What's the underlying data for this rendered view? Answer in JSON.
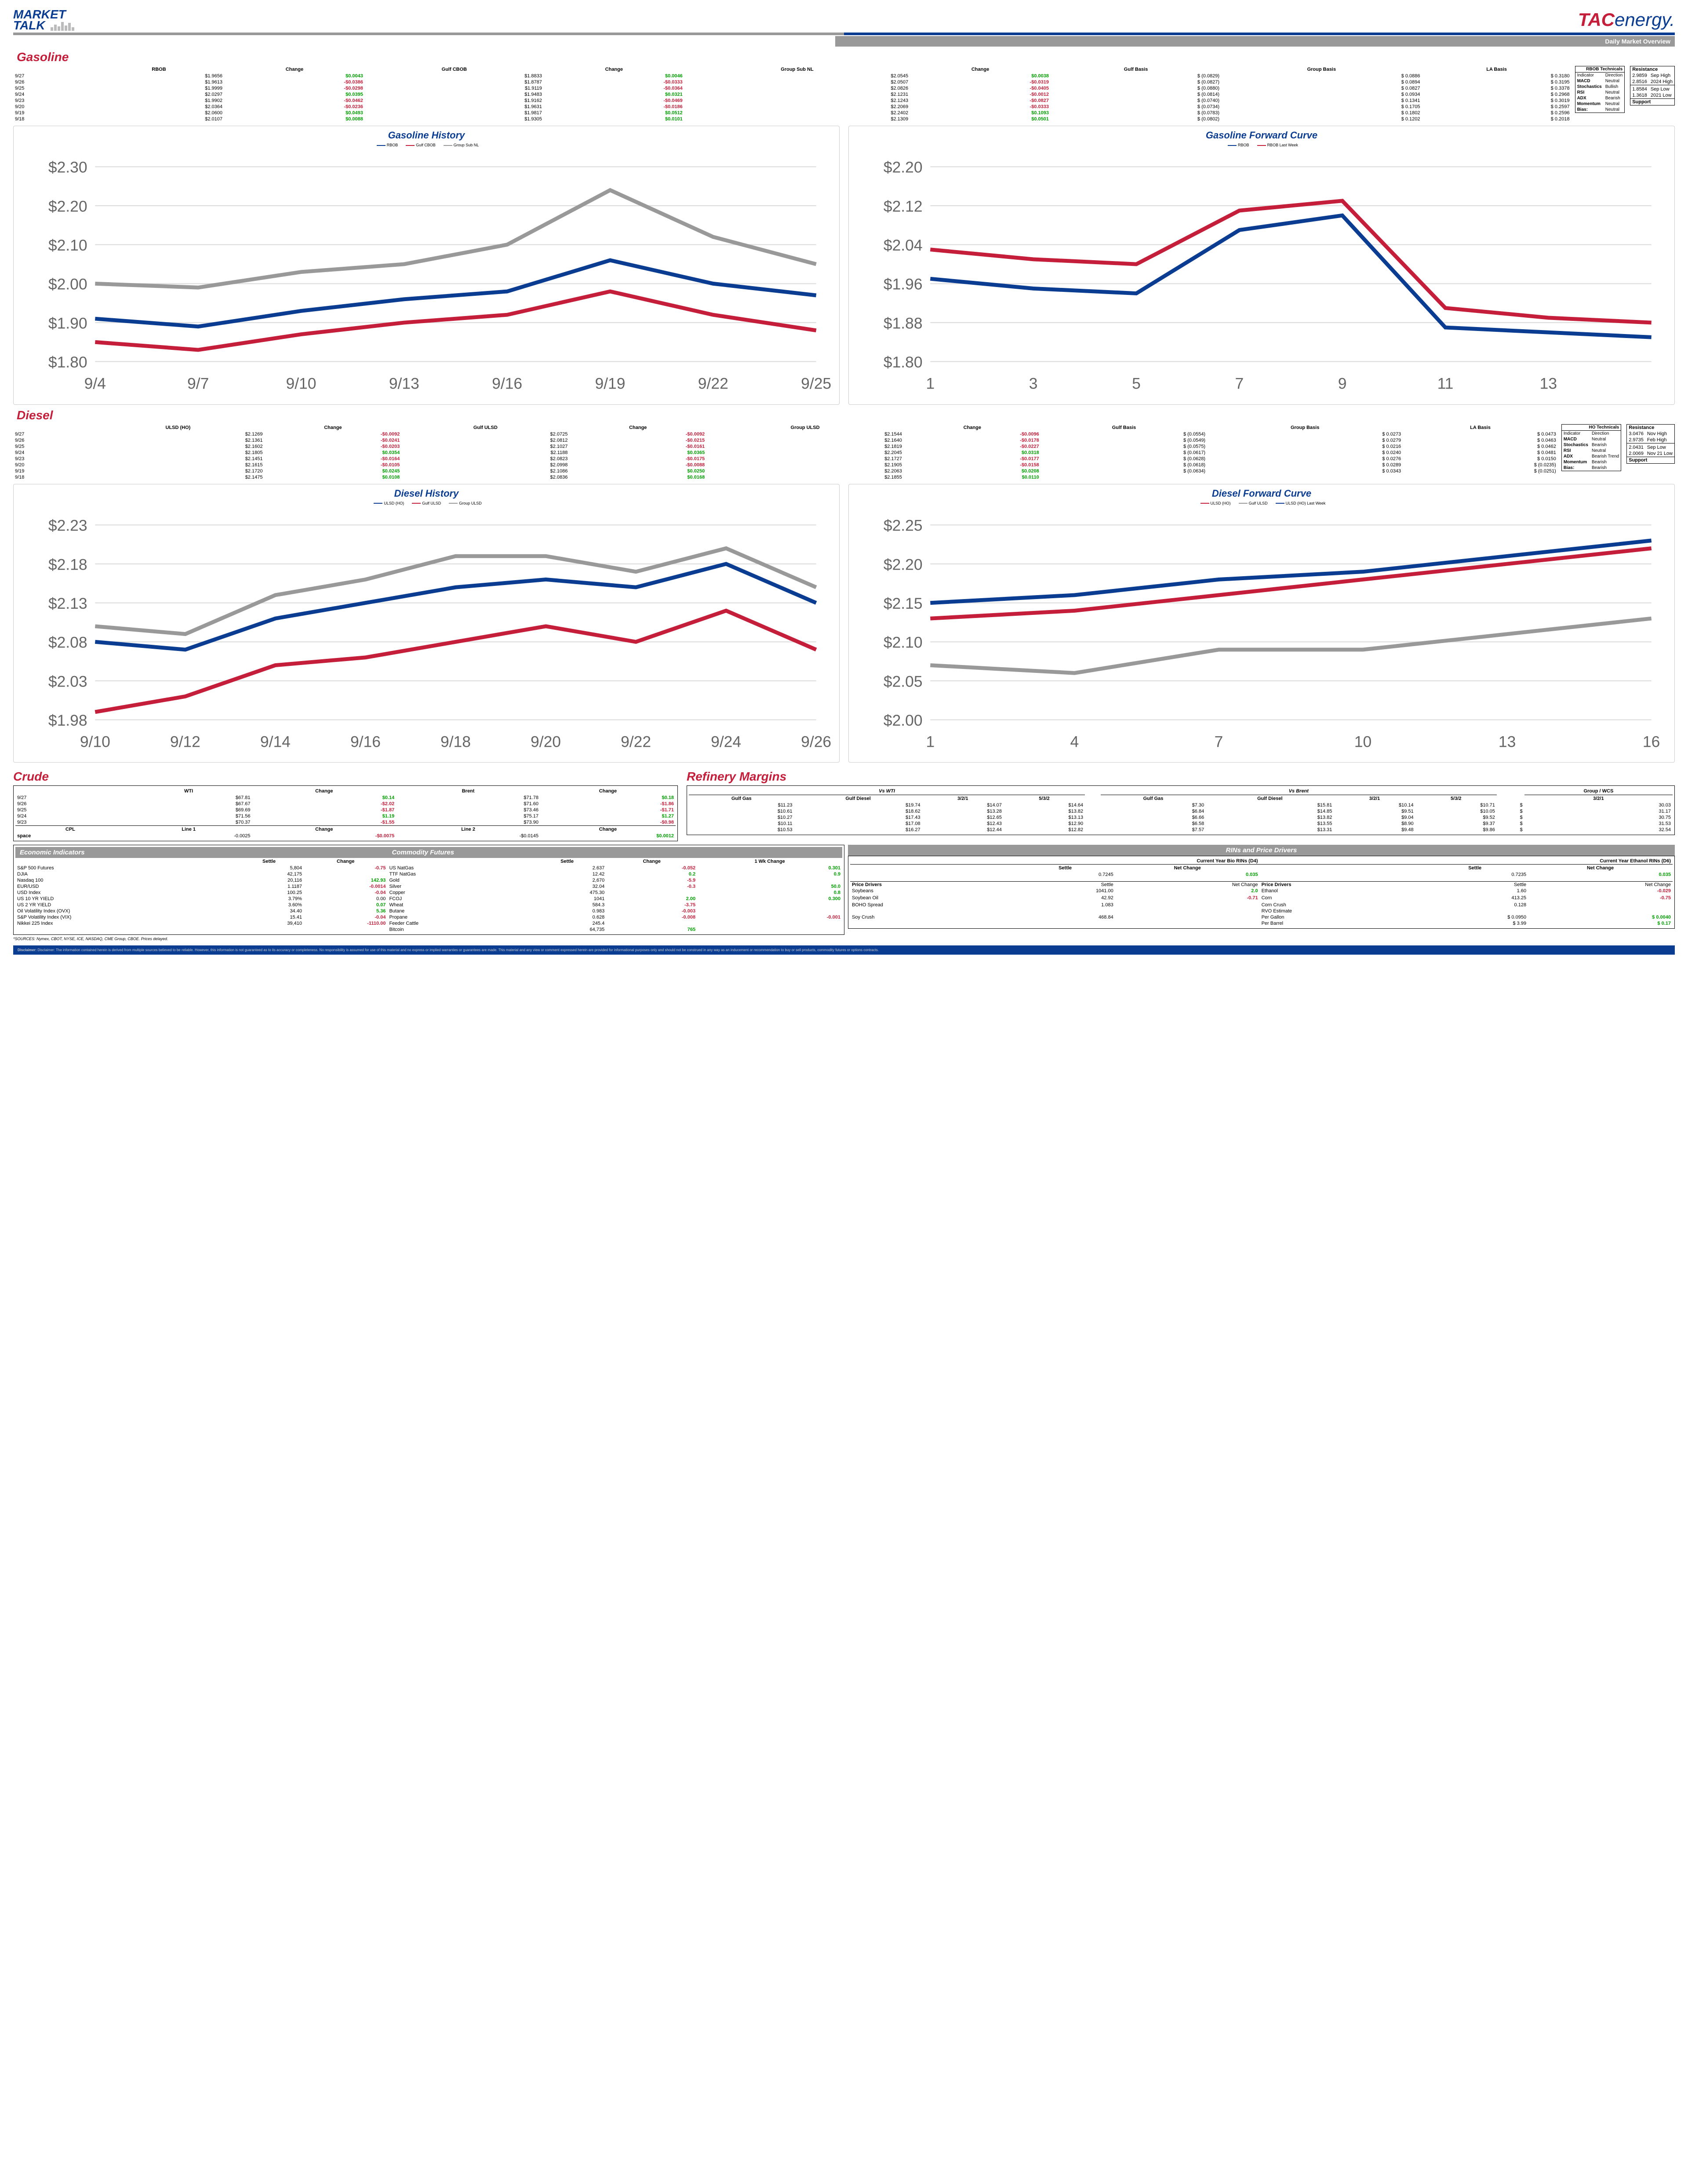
{
  "titles": {
    "market": "MARKET",
    "talk": "TALK",
    "dmo": "Daily Market Overview",
    "gasoline": "Gasoline",
    "diesel": "Diesel",
    "crude": "Crude",
    "refinery": "Refinery Margins",
    "gasHist": "Gasoline History",
    "gasFwd": "Gasoline Forward Curve",
    "dslHist": "Diesel History",
    "dslFwd": "Diesel Forward Curve",
    "econ": "Economic Indicators",
    "comm": "Commodity Futures",
    "rins": "RINs and Price Drivers",
    "src": "*SOURCES: Nymex, CBOT, NYSE, ICE, NASDAQ, CME Group, CBOE.   Prices delayed.",
    "disc": "Disclaimer: The information contained herein is derived from multiple sources believed to be reliable. However, this information is not guaranteed as to its accuracy or completeness. No responsibility is assumed for use of this material and no express or implied warranties or guarantees are made. This material and any view or comment expressed herein are provided for informational purposes only and should not be construed in any way as an inducement or recommendation to buy or sell products, commodity futures or options contracts."
  },
  "gasCols": [
    "",
    "RBOB",
    "Change",
    "Gulf CBOB",
    "Change",
    "Group Sub NL",
    "Change",
    "Gulf Basis",
    "Group Basis",
    "LA Basis"
  ],
  "gasRows": [
    [
      "9/27",
      "$1.9656",
      "$0.0043",
      "$1.8833",
      "$0.0046",
      "$2.0545",
      "$0.0038",
      "$  (0.0829)",
      "$      0.0886",
      "$   0.3180"
    ],
    [
      "9/26",
      "$1.9613",
      "-$0.0386",
      "$1.8787",
      "-$0.0333",
      "$2.0507",
      "-$0.0319",
      "$  (0.0827)",
      "$      0.0894",
      "$   0.3195"
    ],
    [
      "9/25",
      "$1.9999",
      "-$0.0298",
      "$1.9119",
      "-$0.0364",
      "$2.0826",
      "-$0.0405",
      "$  (0.0880)",
      "$      0.0827",
      "$   0.3378"
    ],
    [
      "9/24",
      "$2.0297",
      "$0.0395",
      "$1.9483",
      "$0.0321",
      "$2.1231",
      "-$0.0012",
      "$  (0.0814)",
      "$      0.0934",
      "$   0.2968"
    ],
    [
      "9/23",
      "$1.9902",
      "-$0.0462",
      "$1.9162",
      "-$0.0469",
      "$2.1243",
      "-$0.0827",
      "$  (0.0740)",
      "$      0.1341",
      "$   0.3019"
    ],
    [
      "9/20",
      "$2.0364",
      "-$0.0236",
      "$1.9631",
      "-$0.0186",
      "$2.2069",
      "-$0.0333",
      "$  (0.0734)",
      "$      0.1705",
      "$   0.2597"
    ],
    [
      "9/19",
      "$2.0600",
      "$0.0493",
      "$1.9817",
      "$0.0512",
      "$2.2402",
      "$0.1093",
      "$  (0.0783)",
      "$      0.1802",
      "$   0.2596"
    ],
    [
      "9/18",
      "$2.0107",
      "$0.0088",
      "$1.9305",
      "$0.0101",
      "$2.1309",
      "$0.0501",
      "$  (0.0802)",
      "$      0.1202",
      "$   0.2018"
    ]
  ],
  "gasTech": {
    "title": "RBOB Technicals",
    "cols": [
      "Indicator",
      "Direction"
    ],
    "rows": [
      [
        "MACD",
        "Neutral"
      ],
      [
        "Stochastics",
        "Bullish"
      ],
      [
        "RSI",
        "Neutral"
      ],
      [
        "ADX",
        "Bearish"
      ],
      [
        "Momentum",
        "Neutral"
      ],
      [
        "Bias:",
        "Neutral"
      ]
    ]
  },
  "gasRes": {
    "title": "Resistance",
    "rows": [
      [
        "2.9859",
        "Sep High"
      ],
      [
        "2.8516",
        "2024 High"
      ],
      [
        "1.8584",
        "Sep Low"
      ],
      [
        "1.3618",
        "2021 Low"
      ]
    ],
    "sup": "Support"
  },
  "dslCols": [
    "",
    "ULSD (HO)",
    "Change",
    "Gulf ULSD",
    "Change",
    "Group ULSD",
    "Change",
    "Gulf Basis",
    "Group Basis",
    "LA Basis"
  ],
  "dslRows": [
    [
      "9/27",
      "$2.1269",
      "-$0.0092",
      "$2.0725",
      "-$0.0092",
      "$2.1544",
      "-$0.0096",
      "$  (0.0554)",
      "$      0.0273",
      "$   0.0473"
    ],
    [
      "9/26",
      "$2.1361",
      "-$0.0241",
      "$2.0812",
      "-$0.0215",
      "$2.1640",
      "-$0.0178",
      "$  (0.0549)",
      "$      0.0279",
      "$   0.0463"
    ],
    [
      "9/25",
      "$2.1602",
      "-$0.0203",
      "$2.1027",
      "-$0.0161",
      "$2.1819",
      "-$0.0227",
      "$  (0.0575)",
      "$      0.0216",
      "$   0.0462"
    ],
    [
      "9/24",
      "$2.1805",
      "$0.0354",
      "$2.1188",
      "$0.0365",
      "$2.2045",
      "$0.0318",
      "$  (0.0617)",
      "$      0.0240",
      "$   0.0481"
    ],
    [
      "9/23",
      "$2.1451",
      "-$0.0164",
      "$2.0823",
      "-$0.0175",
      "$2.1727",
      "-$0.0177",
      "$  (0.0628)",
      "$      0.0276",
      "$   0.0150"
    ],
    [
      "9/20",
      "$2.1615",
      "-$0.0105",
      "$2.0998",
      "-$0.0088",
      "$2.1905",
      "-$0.0158",
      "$  (0.0618)",
      "$      0.0289",
      "$  (0.0235)"
    ],
    [
      "9/19",
      "$2.1720",
      "$0.0245",
      "$2.1086",
      "$0.0250",
      "$2.2063",
      "$0.0208",
      "$  (0.0634)",
      "$      0.0343",
      "$  (0.0251)"
    ],
    [
      "9/18",
      "$2.1475",
      "$0.0108",
      "$2.0836",
      "$0.0168",
      "$2.1855",
      "$0.0110",
      "",
      "",
      ""
    ]
  ],
  "dslTech": {
    "title": "HO Technicals",
    "cols": [
      "Indicator",
      "Direction"
    ],
    "rows": [
      [
        "MACD",
        "Neutral"
      ],
      [
        "Stochastics",
        "Bearish"
      ],
      [
        "RSI",
        "Neutral"
      ],
      [
        "ADX",
        "Bearish Trend"
      ],
      [
        "Momentum",
        "Bearish"
      ],
      [
        "Bias:",
        "Bearish"
      ]
    ]
  },
  "dslRes": {
    "title": "Resistance",
    "rows": [
      [
        "3.0476",
        "Nov High"
      ],
      [
        "2.9735",
        "Feb High"
      ],
      [
        "2.0431",
        "Sep Low"
      ],
      [
        "2.0069",
        "Nov 21 Low"
      ]
    ],
    "sup": "Support"
  },
  "crudeCols": [
    "",
    "WTI",
    "Change",
    "Brent",
    "Change"
  ],
  "crudeRows": [
    [
      "9/27",
      "$67.81",
      "$0.14",
      "$71.78",
      "$0.18"
    ],
    [
      "9/26",
      "$67.67",
      "-$2.02",
      "$71.60",
      "-$1.86"
    ],
    [
      "9/25",
      "$69.69",
      "-$1.87",
      "$73.46",
      "-$1.71"
    ],
    [
      "9/24",
      "$71.56",
      "$1.19",
      "$75.17",
      "$1.27"
    ],
    [
      "9/23",
      "$70.37",
      "-$1.55",
      "$73.90",
      "-$0.98"
    ]
  ],
  "cpl": {
    "label": "CPL",
    "sub": "space",
    "l1": "Line 1",
    "l1c": "Change",
    "l2": "Line 2",
    "l2c": "Change",
    "v1": "-0.0025",
    "v2": "-$0.0075",
    "v3": "-$0.0145",
    "v4": "$0.0012"
  },
  "refCols": [
    "",
    "Gulf Gas",
    "Gulf Diesel",
    "3/2/1",
    "5/3/2",
    "",
    "Gulf Gas",
    "Gulf Diesel",
    "3/2/1",
    "5/3/2",
    "",
    "3/2/1"
  ],
  "refHdrs": {
    "wti": "Vs WTI",
    "brent": "Vs Brent",
    "gwcs": "Group / WCS"
  },
  "refRows": [
    [
      "",
      "$11.23",
      "$19.74",
      "$14.07",
      "$14.64",
      "",
      "$7.30",
      "$15.81",
      "$10.14",
      "$10.71",
      "$",
      "30.03"
    ],
    [
      "",
      "$10.61",
      "$18.62",
      "$13.28",
      "$13.82",
      "",
      "$6.84",
      "$14.85",
      "$9.51",
      "$10.05",
      "$",
      "31.17"
    ],
    [
      "",
      "$10.27",
      "$17.43",
      "$12.65",
      "$13.13",
      "",
      "$6.66",
      "$13.82",
      "$9.04",
      "$9.52",
      "$",
      "30.75"
    ],
    [
      "",
      "$10.11",
      "$17.08",
      "$12.43",
      "$12.90",
      "",
      "$6.58",
      "$13.55",
      "$8.90",
      "$9.37",
      "$",
      "31.53"
    ],
    [
      "",
      "$10.53",
      "$16.27",
      "$12.44",
      "$12.82",
      "",
      "$7.57",
      "$13.31",
      "$9.48",
      "$9.86",
      "$",
      "32.54"
    ]
  ],
  "econ": {
    "cols": [
      "",
      "Settle",
      "Change"
    ],
    "rows": [
      [
        "S&P 500 Futures",
        "5,804",
        "-0.75"
      ],
      [
        "DJIA",
        "42,175",
        ""
      ],
      [
        "Nasdaq 100",
        "20,116",
        "142.93"
      ],
      [
        "EUR/USD",
        "1.1187",
        "-0.0014"
      ],
      [
        "USD Index",
        "100.25",
        "-0.04"
      ],
      [
        "US 10 YR YIELD",
        "3.79%",
        "0.00"
      ],
      [
        "US 2 YR YIELD",
        "3.60%",
        "0.07"
      ],
      [
        "Oil Volatility Index (OVX)",
        "34.40",
        "5.36"
      ],
      [
        "S&P Volatility Index (VIX)",
        "15.41",
        "-0.04"
      ],
      [
        "Nikkei 225 Index",
        "39,410",
        "-1110.00"
      ]
    ]
  },
  "comm": {
    "cols": [
      "",
      "Settle",
      "Change",
      "1 Wk Change"
    ],
    "rows": [
      [
        "US NatGas",
        "2.637",
        "-0.052",
        "0.301"
      ],
      [
        "TTF NatGas",
        "12.42",
        "0.2",
        "0.9"
      ],
      [
        "Gold",
        "2,670",
        "-5.9",
        ""
      ],
      [
        "Silver",
        "32.04",
        "-0.3",
        "50.0"
      ],
      [
        "Copper",
        "475.30",
        "",
        "0.8"
      ],
      [
        "FCOJ",
        "1041",
        "2.00",
        "0.300"
      ],
      [
        "Wheat",
        "584.3",
        "-3.75",
        ""
      ],
      [
        "Butane",
        "0.983",
        "-0.003",
        ""
      ],
      [
        "Propane",
        "0.628",
        "-0.008",
        "-0.001"
      ],
      [
        "Feeder Cattle",
        "245.4",
        "",
        ""
      ],
      [
        "Bitcoin",
        "64,735",
        "765",
        ""
      ]
    ]
  },
  "rins": {
    "d4": {
      "title": "Current Year Bio RINs (D4)",
      "settle": "0.7245",
      "chg": "0.035"
    },
    "d6": {
      "title": "Current Year Ethanol RINs (D6)",
      "settle": "0.7235",
      "chg": "0.035"
    },
    "pd1": {
      "title": "Price Drivers",
      "rows": [
        [
          "Soybeans",
          "1041.00",
          "2.0"
        ],
        [
          "",
          "",
          ""
        ],
        [
          "Soybean Oil",
          "42.92",
          "-0.71"
        ],
        [
          "",
          "",
          ""
        ],
        [
          "BOHO Spread",
          "1.083",
          ""
        ],
        [
          "",
          "",
          ""
        ],
        [
          "Soy Crush",
          "468.84",
          ""
        ]
      ]
    },
    "pd2": {
      "title": "Price Drivers",
      "rows": [
        [
          "Ethanol",
          "1.60",
          "-0.029"
        ],
        [
          "",
          "",
          ""
        ],
        [
          "Corn",
          "413.25",
          "-0.75"
        ],
        [
          "",
          "",
          ""
        ],
        [
          "Corn Crush",
          "0.128",
          ""
        ],
        [
          "RVO Estimate",
          "",
          ""
        ],
        [
          "Per Gallon",
          "$   0.0950",
          "$      0.0040"
        ],
        [
          "Per Barrel",
          "$      3.99",
          "$        0.17"
        ]
      ]
    },
    "cols": [
      "",
      "Settle",
      "Net Change"
    ]
  },
  "charts": {
    "gasHist": {
      "ylim": [
        1.8,
        2.3
      ],
      "xlabels": [
        "9/4",
        "9/7",
        "9/10",
        "9/13",
        "9/16",
        "9/19",
        "9/22",
        "9/25"
      ],
      "series": [
        {
          "name": "RBOB",
          "color": "#0a3d91",
          "data": [
            1.91,
            1.89,
            1.93,
            1.96,
            1.98,
            2.06,
            2.0,
            1.97
          ]
        },
        {
          "name": "Gulf CBOB",
          "color": "#c41e3a",
          "data": [
            1.85,
            1.83,
            1.87,
            1.9,
            1.92,
            1.98,
            1.92,
            1.88
          ]
        },
        {
          "name": "Group Sub NL",
          "color": "#999",
          "data": [
            2.0,
            1.99,
            2.03,
            2.05,
            2.1,
            2.24,
            2.12,
            2.05
          ]
        }
      ]
    },
    "gasFwd": {
      "ylim": [
        1.8,
        2.2
      ],
      "xlabels": [
        "1",
        "3",
        "5",
        "7",
        "9",
        "11",
        "13",
        ""
      ],
      "series": [
        {
          "name": "RBOB",
          "color": "#0a3d91",
          "data": [
            1.97,
            1.95,
            1.94,
            2.07,
            2.1,
            1.87,
            1.86,
            1.85
          ]
        },
        {
          "name": "RBOB Last Week",
          "color": "#c41e3a",
          "data": [
            2.03,
            2.01,
            2.0,
            2.11,
            2.13,
            1.91,
            1.89,
            1.88
          ]
        }
      ]
    },
    "dslHist": {
      "ylim": [
        1.98,
        2.23
      ],
      "xlabels": [
        "9/10",
        "9/12",
        "9/14",
        "9/16",
        "9/18",
        "9/20",
        "9/22",
        "9/24",
        "9/26"
      ],
      "series": [
        {
          "name": "ULSD (HO)",
          "color": "#0a3d91",
          "data": [
            2.08,
            2.07,
            2.11,
            2.13,
            2.15,
            2.16,
            2.15,
            2.18,
            2.13
          ]
        },
        {
          "name": "Gulf ULSD",
          "color": "#c41e3a",
          "data": [
            1.99,
            2.01,
            2.05,
            2.06,
            2.08,
            2.1,
            2.08,
            2.12,
            2.07
          ]
        },
        {
          "name": "Group ULSD",
          "color": "#999",
          "data": [
            2.1,
            2.09,
            2.14,
            2.16,
            2.19,
            2.19,
            2.17,
            2.2,
            2.15
          ]
        }
      ]
    },
    "dslFwd": {
      "ylim": [
        2.0,
        2.25
      ],
      "xlabels": [
        "1",
        "4",
        "7",
        "10",
        "13",
        "16"
      ],
      "series": [
        {
          "name": "ULSD (HO)",
          "color": "#c41e3a",
          "data": [
            2.13,
            2.14,
            2.16,
            2.18,
            2.2,
            2.22
          ]
        },
        {
          "name": "Gulf ULSD",
          "color": "#999",
          "data": [
            2.07,
            2.06,
            2.09,
            2.09,
            2.11,
            2.13
          ]
        },
        {
          "name": "ULSD (HO) Last Week",
          "color": "#0a3d91",
          "data": [
            2.15,
            2.16,
            2.18,
            2.19,
            2.21,
            2.23
          ]
        }
      ]
    }
  }
}
